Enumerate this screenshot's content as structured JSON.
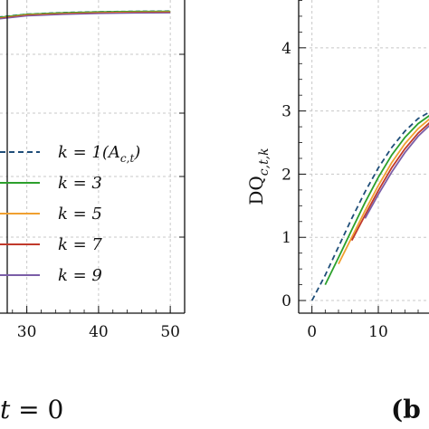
{
  "colors": {
    "k1": "#1f4e79",
    "k3": "#2ca02c",
    "k5": "#f0a030",
    "k7": "#c0392b",
    "k9": "#7b5ea7",
    "grid": "#c8c8c8",
    "axis": "#111111"
  },
  "captions": {
    "left": "t = 0",
    "left_subscript_hint": "",
    "right": "(b"
  },
  "chart_data": [
    {
      "type": "line",
      "title": "",
      "xlabel": "",
      "ylabel": "",
      "xlim": [
        25,
        52
      ],
      "x_ticks": [
        "30",
        "40",
        "50"
      ],
      "x_tick_values": [
        30,
        40,
        50
      ],
      "grid": true,
      "legend_position": "bottom-left",
      "legend": [
        {
          "label": "k = 1(A_{c,t})",
          "display": "k = 1(A",
          "sub": "c,t",
          "tail": ")",
          "style": "dashed",
          "color_key": "k1"
        },
        {
          "label": "k = 3",
          "display": "k = 3",
          "style": "solid",
          "color_key": "k3"
        },
        {
          "label": "k = 5",
          "display": "k = 5",
          "style": "solid",
          "color_key": "k5"
        },
        {
          "label": "k = 7",
          "display": "k = 7",
          "style": "solid",
          "color_key": "k7"
        },
        {
          "label": "k = 9",
          "display": "k = 9",
          "style": "solid",
          "color_key": "k9"
        }
      ],
      "series": [
        {
          "name": "k = 1(A_{c,t})",
          "x": [
            25,
            30,
            35,
            40,
            45,
            50
          ],
          "y": [
            0.968,
            0.985,
            0.992,
            0.996,
            0.998,
            0.999
          ]
        },
        {
          "name": "k = 3",
          "x": [
            25,
            30,
            35,
            40,
            45,
            50
          ],
          "y": [
            0.966,
            0.984,
            0.991,
            0.995,
            0.997,
            0.998
          ]
        }
      ]
    },
    {
      "type": "line",
      "title": "",
      "xlabel": "",
      "ylabel": "DQ_{c,t,k}",
      "ylabel_main": "DQ",
      "ylabel_sub": "c,t,k",
      "xlim": [
        -2,
        19
      ],
      "ylim": [
        -0.2,
        4.9
      ],
      "x_ticks": [
        "0",
        "10"
      ],
      "x_tick_values": [
        0,
        10
      ],
      "y_ticks": [
        "0",
        "1",
        "2",
        "3",
        "4"
      ],
      "y_tick_values": [
        0,
        1,
        2,
        3,
        4
      ],
      "grid": true,
      "series": [
        {
          "name": "k = 1(A_{c,t})",
          "color_key": "k1",
          "style": "dashed",
          "x": [
            0,
            2,
            4,
            6,
            8,
            10,
            12,
            14,
            16,
            18
          ],
          "y": [
            0,
            0.4,
            0.85,
            1.3,
            1.72,
            2.1,
            2.42,
            2.68,
            2.88,
            3.0
          ]
        },
        {
          "name": "k = 3",
          "color_key": "k3",
          "style": "solid",
          "x": [
            2,
            4,
            6,
            8,
            10,
            12,
            14,
            16,
            18
          ],
          "y": [
            0.25,
            0.68,
            1.12,
            1.55,
            1.95,
            2.3,
            2.58,
            2.8,
            2.95
          ]
        },
        {
          "name": "k = 5",
          "color_key": "k5",
          "style": "solid",
          "x": [
            4,
            6,
            8,
            10,
            12,
            14,
            16,
            18
          ],
          "y": [
            0.58,
            1.0,
            1.42,
            1.82,
            2.18,
            2.48,
            2.72,
            2.9
          ]
        },
        {
          "name": "k = 7",
          "color_key": "k7",
          "style": "solid",
          "x": [
            6,
            8,
            10,
            12,
            14,
            16,
            18
          ],
          "y": [
            0.95,
            1.35,
            1.74,
            2.1,
            2.4,
            2.65,
            2.84
          ]
        },
        {
          "name": "k = 9",
          "color_key": "k9",
          "style": "solid",
          "x": [
            8,
            10,
            12,
            14,
            16,
            18
          ],
          "y": [
            1.3,
            1.68,
            2.03,
            2.34,
            2.6,
            2.8
          ]
        }
      ]
    }
  ]
}
